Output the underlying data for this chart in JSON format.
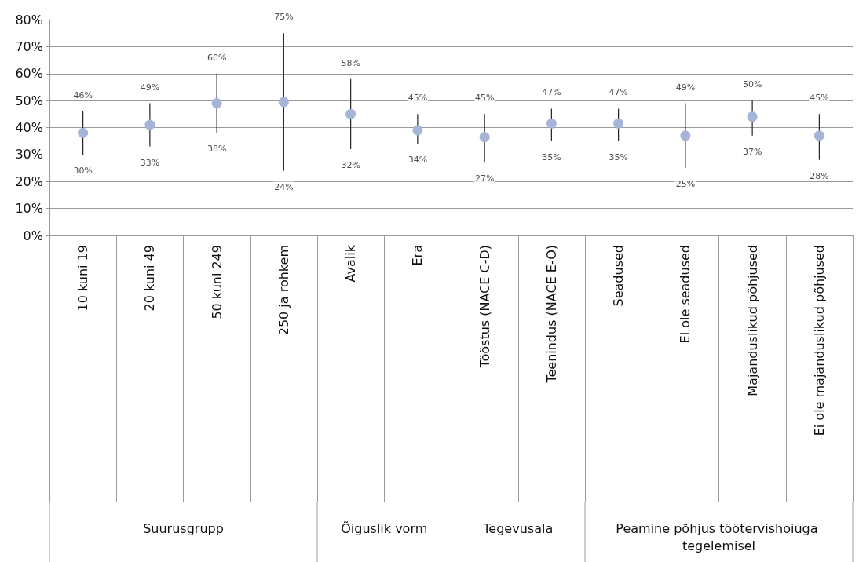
{
  "chart_data": {
    "type": "scatter",
    "categories": [
      "10 kuni 19",
      "20 kuni 49",
      "50 kuni 249",
      "250 ja rohkem",
      "Avalik",
      "Era",
      "Tööstus (NACE C-D)",
      "Teenindus (NACE E-O)",
      "Seadused",
      "Ei ole seadused",
      "Majanduslikud põhjused",
      "Ei ole majanduslikud põhjused"
    ],
    "series": [
      {
        "color": "#a5b5d8",
        "values": [
          38,
          41,
          49,
          49.5,
          45,
          39,
          36.5,
          41.5,
          41.5,
          37,
          44,
          37
        ],
        "errors": [
          [
            30,
            46
          ],
          [
            33,
            49
          ],
          [
            38,
            60
          ],
          [
            24,
            75
          ],
          [
            32,
            58
          ],
          [
            34,
            45
          ],
          [
            27,
            45
          ],
          [
            35,
            47
          ],
          [
            35,
            47
          ],
          [
            25,
            49
          ],
          [
            37,
            50
          ],
          [
            28,
            45
          ]
        ]
      }
    ],
    "ylim": [
      0,
      80
    ],
    "yticks": [
      {
        "value": 0,
        "label": "0%"
      },
      {
        "value": 10,
        "label": "10%"
      },
      {
        "value": 20,
        "label": "20%"
      },
      {
        "value": 30,
        "label": "30%"
      },
      {
        "value": 40,
        "label": "40%"
      },
      {
        "value": 50,
        "label": "50%"
      },
      {
        "value": 60,
        "label": "60%"
      },
      {
        "value": 70,
        "label": "70%"
      },
      {
        "value": 80,
        "label": "80%"
      }
    ],
    "grid": "y",
    "marker": "circle",
    "annotations": [
      {
        "text": "46%",
        "x": "10 kuni 19",
        "y": 46
      },
      {
        "text": "30%",
        "x": "10 kuni 19",
        "y": 30
      },
      {
        "text": "49%",
        "x": "20 kuni 49",
        "y": 49
      },
      {
        "text": "33%",
        "x": "20 kuni 49",
        "y": 33
      },
      {
        "text": "60%",
        "x": "50 kuni 249",
        "y": 60
      },
      {
        "text": "38%",
        "x": "50 kuni 249",
        "y": 38
      },
      {
        "text": "75%",
        "x": "250 ja rohkem",
        "y": 75
      },
      {
        "text": "24%",
        "x": "250 ja rohkem",
        "y": 24
      },
      {
        "text": "58%",
        "x": "Avalik",
        "y": 58
      },
      {
        "text": "32%",
        "x": "Avalik",
        "y": 32
      },
      {
        "text": "45%",
        "x": "Era",
        "y": 45
      },
      {
        "text": "34%",
        "x": "Era",
        "y": 34
      },
      {
        "text": "45%",
        "x": "Tööstus (NACE C-D)",
        "y": 45
      },
      {
        "text": "27%",
        "x": "Tööstus (NACE C-D)",
        "y": 27
      },
      {
        "text": "47%",
        "x": "Teenindus (NACE E-O)",
        "y": 47
      },
      {
        "text": "35%",
        "x": "Teenindus (NACE E-O)",
        "y": 35
      },
      {
        "text": "47%",
        "x": "Seadused",
        "y": 47
      },
      {
        "text": "35%",
        "x": "Seadused",
        "y": 35
      },
      {
        "text": "49%",
        "x": "Ei ole seadused",
        "y": 49
      },
      {
        "text": "25%",
        "x": "Ei ole seadused",
        "y": 25
      },
      {
        "text": "50%",
        "x": "Majanduslikud põhjused",
        "y": 50
      },
      {
        "text": "37%",
        "x": "Majanduslikud põhjused",
        "y": 37
      },
      {
        "text": "45%",
        "x": "Ei ole majanduslikud põhjused",
        "y": 45
      },
      {
        "text": "28%",
        "x": "Ei ole majanduslikud põhjused",
        "y": 28
      },
      "Suurusgrupp",
      "Õiguslik vorm",
      "Tegevusala",
      "Peamine põhjus töötervishoiuga tegelemisel"
    ]
  }
}
